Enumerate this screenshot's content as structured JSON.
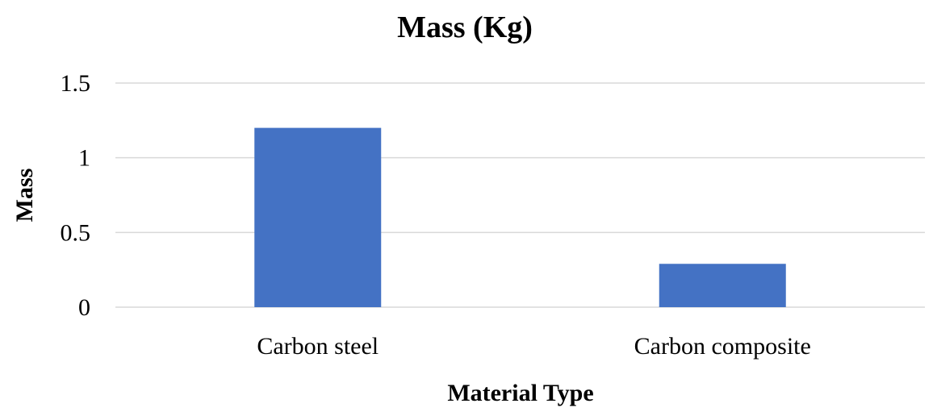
{
  "chart_data": {
    "type": "bar",
    "title": "Mass (Kg)",
    "xlabel": "Material Type",
    "ylabel": "Mass",
    "categories": [
      "Carbon steel",
      "Carbon composite"
    ],
    "series": [
      {
        "values": [
          1.2,
          0.29
        ]
      }
    ],
    "ylim": [
      0,
      1.5
    ],
    "yticks": [
      0,
      0.5,
      1,
      1.5
    ],
    "ytick_labels": [
      "0",
      "0.5",
      "1",
      "1.5"
    ],
    "grid": true,
    "legend": "none",
    "colors": {
      "bar": "#4472c4",
      "grid": "#d9d9d9"
    }
  }
}
